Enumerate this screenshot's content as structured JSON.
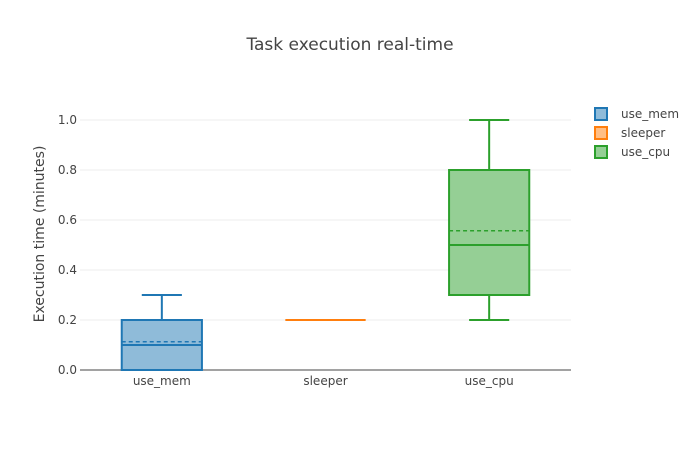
{
  "chart_data": {
    "type": "box",
    "title": "Task execution real-time",
    "xlabel": "",
    "ylabel": "Execution time (minutes)",
    "ylim": [
      0,
      1.08
    ],
    "yticks": [
      "0.0",
      "0.2",
      "0.4",
      "0.6",
      "0.8",
      "1.0"
    ],
    "ytick_values": [
      0,
      0.2,
      0.4,
      0.6,
      0.8,
      1.0
    ],
    "categories": [
      "use_mem",
      "sleeper",
      "use_cpu"
    ],
    "grid": true,
    "legend_position": "top-right",
    "series": [
      {
        "name": "use_mem",
        "color": "#1f77b4",
        "fill": "#8fbbd9",
        "min": 0.0,
        "q1": 0.0,
        "median": 0.1,
        "mean": 0.113,
        "q3": 0.2,
        "max": 0.3
      },
      {
        "name": "sleeper",
        "color": "#ff7f0e",
        "fill": "#ffbf86",
        "min": 0.2,
        "q1": 0.2,
        "median": 0.2,
        "mean": 0.2,
        "q3": 0.2,
        "max": 0.2
      },
      {
        "name": "use_cpu",
        "color": "#2ca02c",
        "fill": "#95cf95",
        "min": 0.2,
        "q1": 0.3,
        "median": 0.5,
        "mean": 0.557,
        "q3": 0.8,
        "max": 1.0
      }
    ]
  }
}
